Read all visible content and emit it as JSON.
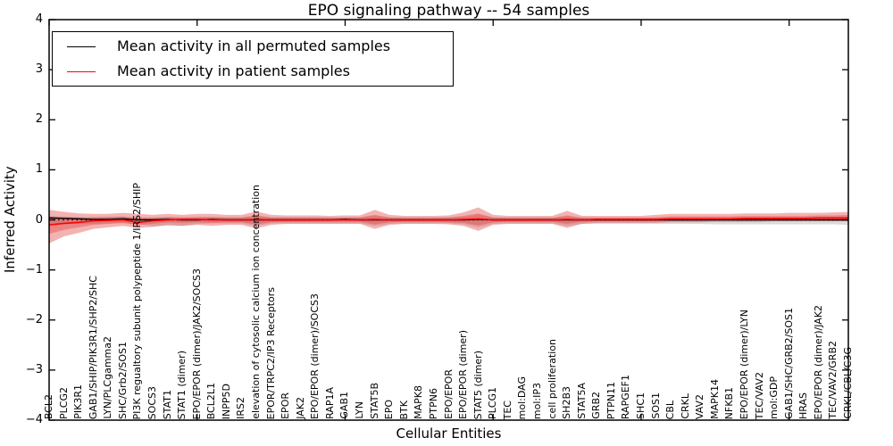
{
  "title": "EPO signaling pathway -- 54 samples",
  "legend": {
    "items": [
      {
        "label": "Mean activity in all permuted samples",
        "color": "#000000"
      },
      {
        "label": "Mean activity in patient samples",
        "color": "#ff0000"
      }
    ]
  },
  "chart_data": {
    "type": "line",
    "title": "EPO signaling pathway -- 54 samples",
    "xlabel": "Cellular Entities",
    "ylabel": "Inferred Activity",
    "ylim": [
      -4,
      4
    ],
    "grid": false,
    "legend_position": "upper left",
    "yticks": [
      4,
      3,
      2,
      1,
      0,
      -1,
      -2,
      -3,
      -4
    ],
    "ytick_labels": [
      "4",
      "3",
      "2",
      "1",
      "0",
      "−1",
      "−2",
      "−3",
      "−4"
    ],
    "xtick_indices": [
      0,
      10,
      20,
      30,
      40,
      50
    ],
    "categories": [
      "BCL2",
      "PLCG2",
      "PIK3R1",
      "GAB1/SHIP/PIK3R1/SHP2/SHC",
      "LYN/PLCgamma2",
      "SHC/Grb2/SOS1",
      "PI3K regualtory subunit polypeptide 1/IRS2/SHIP",
      "SOCS3",
      "STAT1",
      "STAT1 (dimer)",
      "EPO/EPOR (dimer)/JAK2/SOCS3",
      "BCL2L1",
      "INPP5D",
      "IRS2",
      "elevation of cytosolic calcium ion concentration",
      "EPOR/TRPC2/IP3 Receptors",
      "EPOR",
      "JAK2",
      "EPO/EPOR (dimer)/SOCS3",
      "RAP1A",
      "GAB1",
      "LYN",
      "STAT5B",
      "EPO",
      "BTK",
      "MAPK8",
      "PTPN6",
      "EPO/EPOR",
      "EPO/EPOR (dimer)",
      "STAT5 (dimer)",
      "PLCG1",
      "TEC",
      "mol:DAG",
      "mol:IP3",
      "cell proliferation",
      "SH2B3",
      "STAT5A",
      "GRB2",
      "PTPN11",
      "RAPGEF1",
      "SHC1",
      "SOS1",
      "CBL",
      "CRKL",
      "VAV2",
      "MAPK14",
      "NFKB1",
      "EPO/EPOR (dimer)/LYN",
      "TEC/VAV2",
      "mol:GDP",
      "GAB1/SHC/GRB2/SOS1",
      "HRAS",
      "EPO/EPOR (dimer)/JAK2",
      "TEC/VAV2/GRB2",
      "CRKL/CBL/C3G"
    ],
    "refline": {
      "y": 0,
      "style": "dotted",
      "color": "#000000"
    },
    "series": [
      {
        "name": "Mean activity in all permuted samples",
        "color": "#000000",
        "values": [
          0.04,
          0.03,
          0.02,
          0.01,
          0.01,
          0.02,
          0.0,
          0.0,
          0.01,
          0.0,
          0.0,
          0.01,
          0.0,
          0.0,
          0.0,
          0.0,
          0.0,
          0.0,
          0.0,
          0.0,
          0.01,
          0.0,
          0.0,
          0.0,
          0.0,
          0.0,
          0.0,
          0.0,
          0.0,
          0.01,
          0.0,
          0.0,
          0.0,
          0.0,
          0.0,
          0.0,
          0.0,
          0.0,
          0.0,
          0.0,
          0.0,
          0.0,
          0.0,
          0.0,
          0.0,
          0.0,
          0.0,
          0.0,
          0.0,
          0.0,
          0.0,
          0.0,
          0.0,
          0.0,
          0.0
        ]
      },
      {
        "name": "Mean activity in patient samples",
        "color": "#ff0000",
        "values": [
          -0.1,
          -0.07,
          -0.05,
          -0.02,
          -0.01,
          0.0,
          -0.05,
          -0.02,
          0.0,
          0.01,
          0.01,
          0.0,
          0.0,
          0.0,
          0.01,
          0.0,
          0.0,
          0.0,
          0.0,
          0.0,
          0.0,
          0.0,
          0.01,
          0.0,
          0.0,
          0.0,
          0.0,
          0.0,
          0.01,
          0.02,
          0.0,
          0.0,
          0.0,
          0.0,
          0.0,
          0.01,
          0.0,
          0.01,
          0.01,
          0.01,
          0.01,
          0.01,
          0.02,
          0.02,
          0.02,
          0.02,
          0.02,
          0.03,
          0.03,
          0.03,
          0.03,
          0.03,
          0.04,
          0.04,
          0.04
        ]
      }
    ],
    "bands": [
      {
        "name": "permuted-samples-range",
        "color": "#999999",
        "opacity": 0.35,
        "upper": [
          0.08,
          0.07,
          0.06,
          0.06,
          0.06,
          0.06,
          0.05,
          0.05,
          0.05,
          0.05,
          0.05,
          0.05,
          0.05,
          0.05,
          0.08,
          0.05,
          0.05,
          0.05,
          0.05,
          0.05,
          0.05,
          0.05,
          0.08,
          0.05,
          0.05,
          0.05,
          0.05,
          0.05,
          0.06,
          0.1,
          0.05,
          0.05,
          0.05,
          0.05,
          0.05,
          0.07,
          0.05,
          0.05,
          0.05,
          0.05,
          0.05,
          0.05,
          0.05,
          0.05,
          0.05,
          0.05,
          0.05,
          0.05,
          0.05,
          0.05,
          0.05,
          0.05,
          0.05,
          0.05,
          0.05
        ],
        "lower": [
          -0.1,
          -0.09,
          -0.08,
          -0.08,
          -0.07,
          -0.07,
          -0.08,
          -0.13,
          -0.12,
          -0.12,
          -0.08,
          -0.07,
          -0.07,
          -0.07,
          -0.12,
          -0.07,
          -0.07,
          -0.07,
          -0.07,
          -0.07,
          -0.07,
          -0.07,
          -0.12,
          -0.08,
          -0.07,
          -0.07,
          -0.07,
          -0.07,
          -0.09,
          -0.15,
          -0.08,
          -0.07,
          -0.07,
          -0.07,
          -0.07,
          -0.12,
          -0.08,
          -0.08,
          -0.08,
          -0.08,
          -0.08,
          -0.08,
          -0.08,
          -0.08,
          -0.08,
          -0.09,
          -0.09,
          -0.09,
          -0.09,
          -0.09,
          -0.09,
          -0.09,
          -0.09,
          -0.09,
          -0.1
        ]
      },
      {
        "name": "patient-samples-range-outer",
        "color": "#e04040",
        "opacity": 0.4,
        "upper": [
          0.2,
          0.16,
          0.13,
          0.12,
          0.12,
          0.14,
          0.12,
          0.1,
          0.12,
          0.1,
          0.12,
          0.12,
          0.1,
          0.1,
          0.17,
          0.1,
          0.09,
          0.09,
          0.09,
          0.08,
          0.09,
          0.09,
          0.2,
          0.1,
          0.08,
          0.08,
          0.08,
          0.09,
          0.15,
          0.25,
          0.1,
          0.08,
          0.08,
          0.08,
          0.08,
          0.18,
          0.08,
          0.08,
          0.08,
          0.08,
          0.08,
          0.1,
          0.12,
          0.12,
          0.12,
          0.12,
          0.12,
          0.13,
          0.13,
          0.13,
          0.14,
          0.14,
          0.14,
          0.15,
          0.16
        ],
        "lower": [
          -0.47,
          -0.33,
          -0.26,
          -0.18,
          -0.15,
          -0.12,
          -0.16,
          -0.14,
          -0.1,
          -0.12,
          -0.1,
          -0.12,
          -0.1,
          -0.1,
          -0.17,
          -0.1,
          -0.08,
          -0.08,
          -0.08,
          -0.08,
          -0.08,
          -0.08,
          -0.18,
          -0.1,
          -0.08,
          -0.08,
          -0.08,
          -0.09,
          -0.12,
          -0.22,
          -0.1,
          -0.08,
          -0.08,
          -0.08,
          -0.08,
          -0.16,
          -0.08,
          -0.06,
          -0.06,
          -0.06,
          -0.06,
          -0.06,
          -0.05,
          -0.05,
          -0.05,
          -0.04,
          -0.04,
          -0.04,
          -0.04,
          -0.03,
          -0.03,
          -0.03,
          -0.03,
          -0.03,
          -0.03
        ]
      },
      {
        "name": "patient-samples-range-inner",
        "color": "#e04040",
        "opacity": 0.4,
        "upper": [
          0.05,
          0.05,
          0.04,
          0.05,
          0.06,
          0.07,
          0.04,
          0.04,
          0.06,
          0.05,
          0.06,
          0.06,
          0.05,
          0.05,
          0.09,
          0.05,
          0.05,
          0.05,
          0.05,
          0.04,
          0.05,
          0.05,
          0.1,
          0.05,
          0.04,
          0.04,
          0.04,
          0.05,
          0.08,
          0.13,
          0.05,
          0.04,
          0.04,
          0.04,
          0.04,
          0.09,
          0.04,
          0.04,
          0.04,
          0.04,
          0.04,
          0.05,
          0.07,
          0.07,
          0.07,
          0.07,
          0.07,
          0.08,
          0.08,
          0.08,
          0.08,
          0.08,
          0.09,
          0.09,
          0.1
        ],
        "lower": [
          -0.28,
          -0.2,
          -0.15,
          -0.1,
          -0.08,
          -0.06,
          -0.1,
          -0.08,
          -0.05,
          -0.06,
          -0.05,
          -0.06,
          -0.05,
          -0.05,
          -0.09,
          -0.05,
          -0.04,
          -0.04,
          -0.04,
          -0.04,
          -0.04,
          -0.04,
          -0.09,
          -0.05,
          -0.04,
          -0.04,
          -0.04,
          -0.05,
          -0.06,
          -0.11,
          -0.05,
          -0.04,
          -0.04,
          -0.04,
          -0.04,
          -0.08,
          -0.04,
          -0.03,
          -0.03,
          -0.03,
          -0.03,
          -0.03,
          -0.02,
          -0.02,
          -0.02,
          -0.01,
          -0.01,
          -0.01,
          -0.01,
          0.0,
          0.0,
          0.0,
          0.0,
          0.0,
          0.01
        ]
      }
    ]
  }
}
